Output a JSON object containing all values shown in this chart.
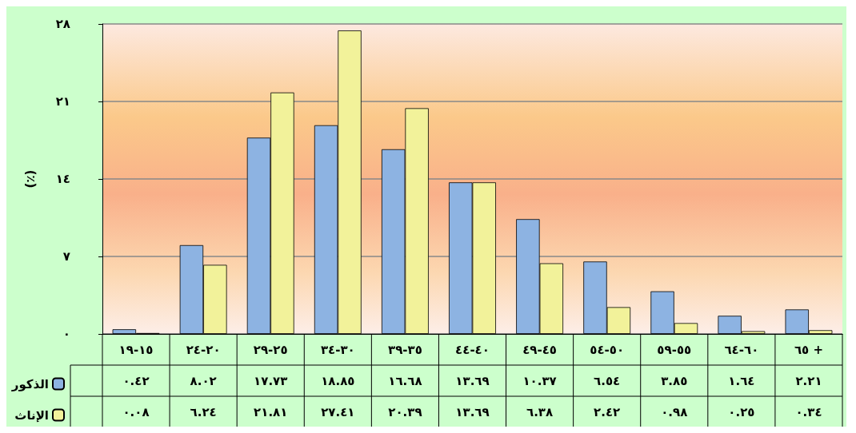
{
  "chart_data": {
    "type": "bar",
    "ylabel": "(٪)",
    "categories": [
      "١٥-١٩",
      "٢٠-٢٤",
      "٢٥-٢٩",
      "٣٠-٣٤",
      "٣٥-٣٩",
      "٤٠-٤٤",
      "٤٥-٤٩",
      "٥٠-٥٤",
      "٥٥-٥٩",
      "٦٠-٦٤",
      "٦٥ +"
    ],
    "series": [
      {
        "name": "الذكور",
        "color": "#8db3e2",
        "values": [
          0.42,
          8.02,
          17.73,
          18.85,
          16.68,
          13.69,
          10.37,
          6.54,
          3.85,
          1.64,
          2.21
        ],
        "value_labels": [
          "٠.٤٢",
          "٨.٠٢",
          "١٧.٧٣",
          "١٨.٨٥",
          "١٦.٦٨",
          "١٣.٦٩",
          "١٠.٣٧",
          "٦.٥٤",
          "٣.٨٥",
          "١.٦٤",
          "٢.٢١"
        ]
      },
      {
        "name": "الإناث",
        "color": "#f2f29a",
        "values": [
          0.08,
          6.24,
          21.81,
          27.41,
          20.39,
          13.69,
          6.38,
          2.42,
          0.98,
          0.25,
          0.34
        ],
        "value_labels": [
          "٠.٠٨",
          "٦.٢٤",
          "٢١.٨١",
          "٢٧.٤١",
          "٢٠.٣٩",
          "١٣.٦٩",
          "٦.٣٨",
          "٢.٤٢",
          "٠.٩٨",
          "٠.٢٥",
          "٠.٣٤"
        ]
      }
    ],
    "ylim": [
      0,
      28
    ],
    "yticks": [
      {
        "value": 0,
        "label": "٠"
      },
      {
        "value": 7,
        "label": "٧"
      },
      {
        "value": 14,
        "label": "١٤"
      },
      {
        "value": 21,
        "label": "٢١"
      },
      {
        "value": 28,
        "label": "٢٨"
      }
    ],
    "grid": "y",
    "legend": "bottom left"
  }
}
